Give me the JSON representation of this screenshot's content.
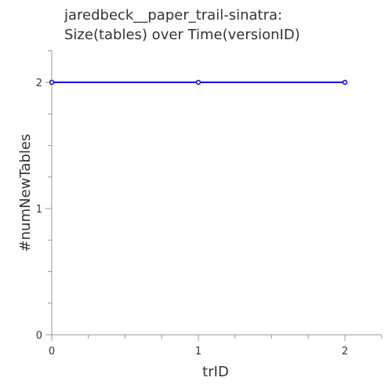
{
  "colors": {
    "series": "#0000ee",
    "axis": "#999999",
    "text": "#333333"
  },
  "chart_data": {
    "type": "line",
    "title": "jaredbeck__paper_trail-sinatra:",
    "subtitle": "Size(tables) over Time(versionID)",
    "xlabel": "trID",
    "ylabel": "#numNewTables",
    "x": [
      0,
      1,
      2
    ],
    "x_tick_labels": [
      "0",
      "1",
      "2"
    ],
    "y_tick_labels": [
      "0",
      "1",
      "2"
    ],
    "xlim": [
      0,
      2.25
    ],
    "ylim": [
      0,
      2.25
    ],
    "grid": false,
    "series": [
      {
        "x": [
          0,
          1,
          2
        ],
        "values": [
          2,
          2,
          2
        ]
      }
    ]
  }
}
